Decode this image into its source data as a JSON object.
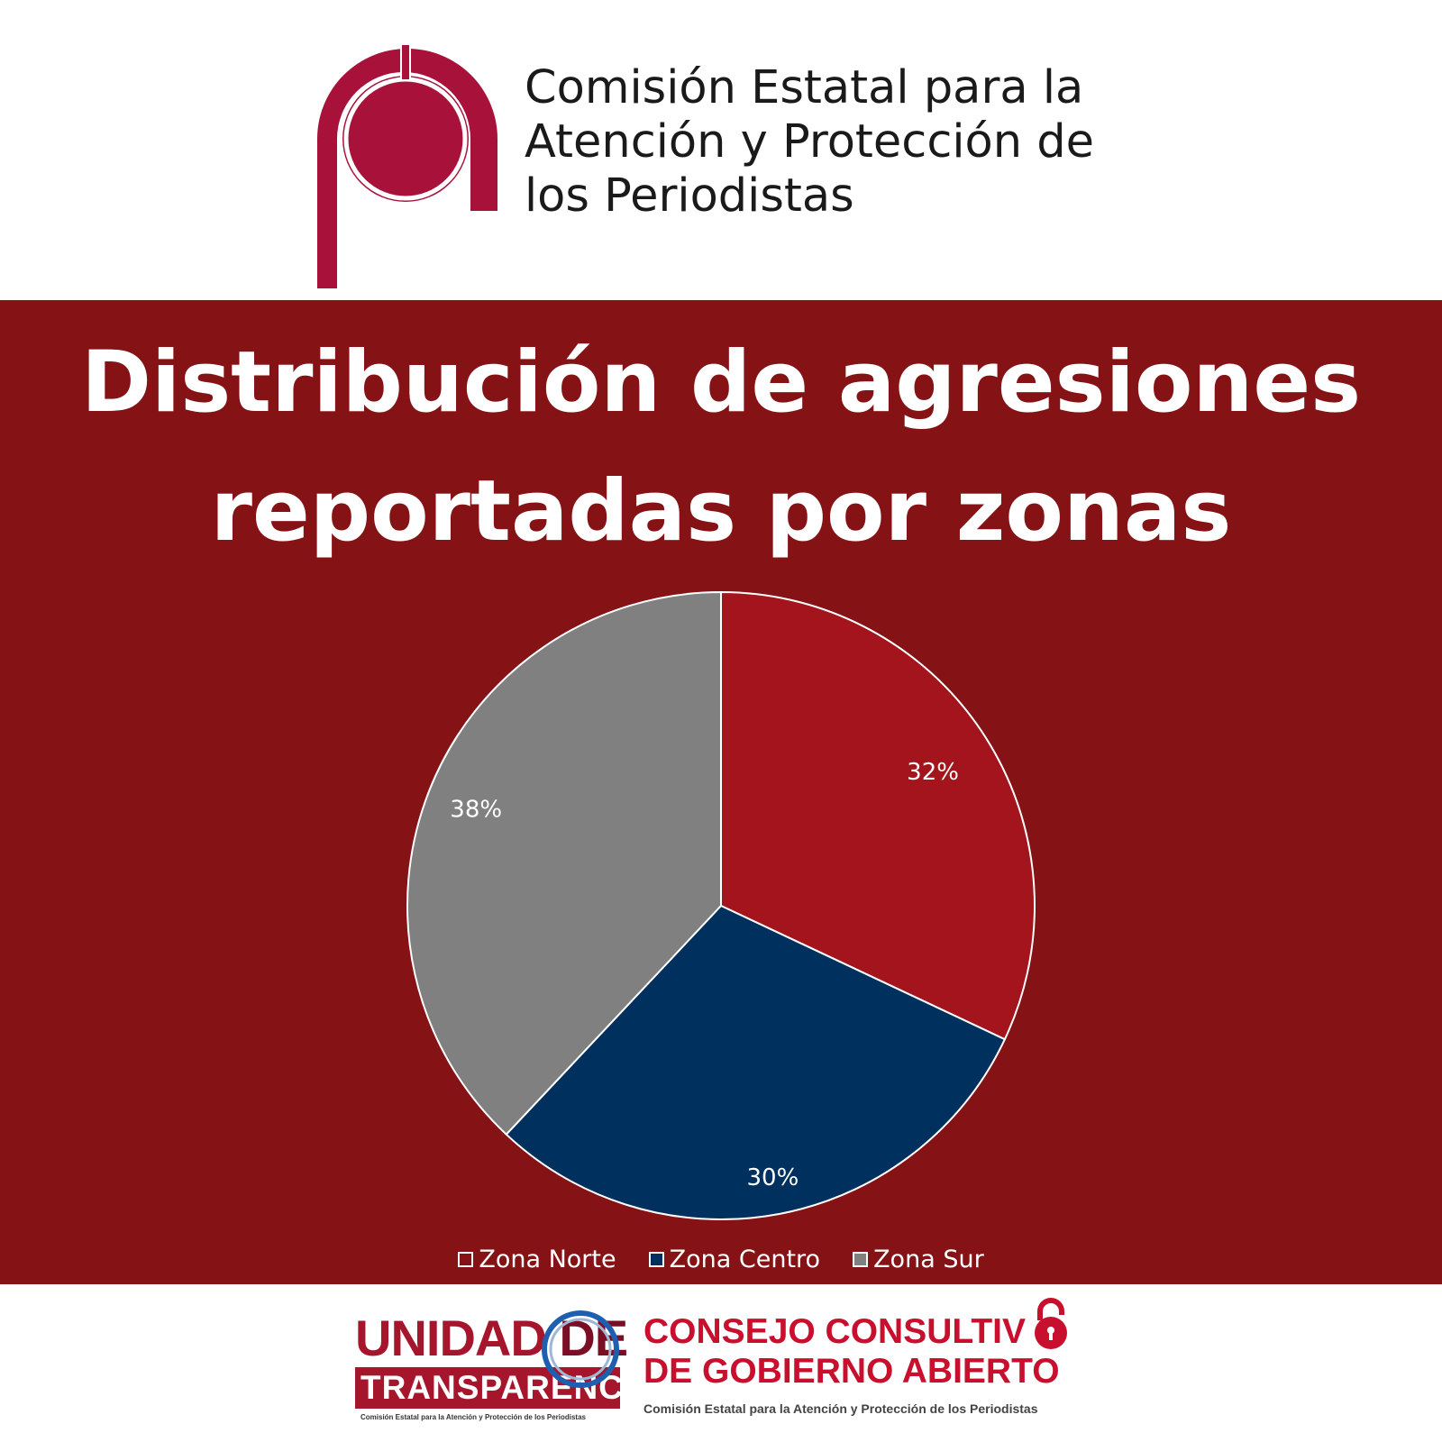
{
  "header": {
    "org_name_lines": [
      "Comisión Estatal para la",
      "Atención y Protección de",
      "los Periodistas"
    ],
    "logo_icon": "cepp-logo-icon",
    "brand_color": "#a8123a"
  },
  "chart_data": {
    "type": "pie",
    "title_lines": [
      "Distribución de agresiones",
      "reportadas por zonas"
    ],
    "categories": [
      "Zona Norte",
      "Zona Centro",
      "Zona Sur"
    ],
    "values": [
      32,
      30,
      38
    ],
    "labels": [
      "32%",
      "30%",
      "38%"
    ],
    "colors": [
      "#a3141c",
      "#00305e",
      "#808080"
    ],
    "legend_position": "bottom"
  },
  "footer": {
    "unidad": {
      "word1": "UNIDAD",
      "word2": "DE",
      "word3": "TRANSPARENCIA",
      "subtitle": "Comisión Estatal para la Atención y Protección de los Periodistas"
    },
    "consejo": {
      "line1": "CONSEJO CONSULTIV",
      "line2": "DE GOBIERNO ABIERTO",
      "line3": "Comisión Estatal para la Atención y Protección de los Periodistas",
      "icon": "padlock-icon"
    }
  }
}
